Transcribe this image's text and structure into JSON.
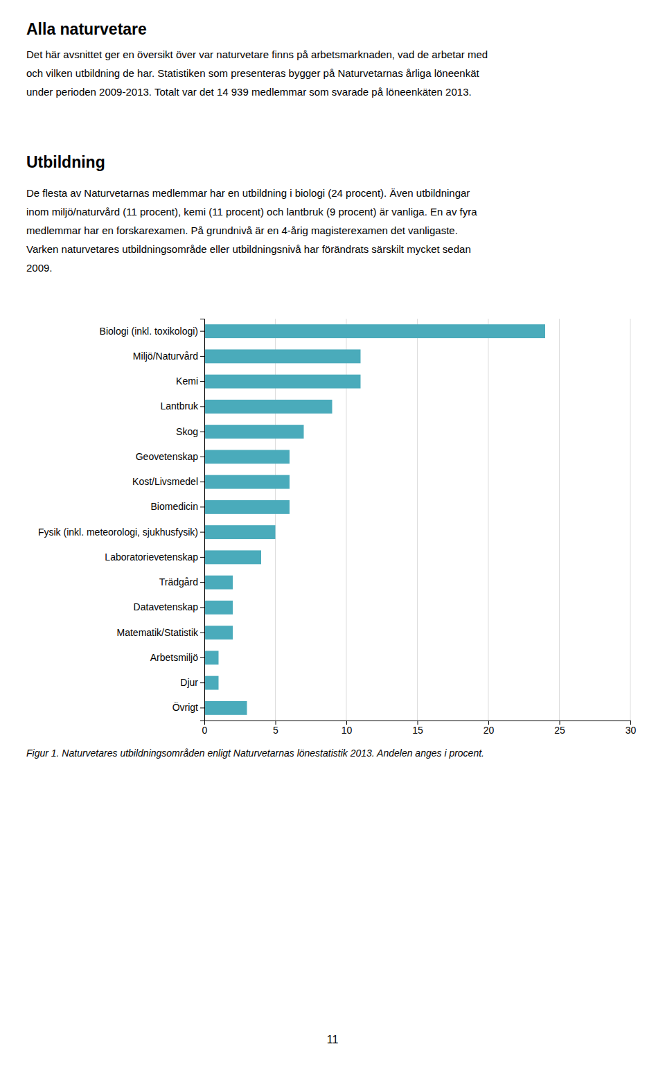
{
  "title": "Alla naturvetare",
  "body_text": [
    "Det här avsnittet ger en översikt över var naturvetare finns på arbetsmarknaden, vad de arbetar med",
    "och vilken utbildning de har. Statistiken som presenteras bygger på Naturvetarnas årliga löneenkät",
    "under perioden 2009-2013. Totalt var det 14 939 medlemmar som svarade på löneenkäten 2013."
  ],
  "section_title": "Utbildning",
  "section_body": [
    "De flesta av Naturvetarnas medlemmar har en utbildning i biologi (24 procent). Även utbildningar",
    "inom miljö/naturvård (11 procent), kemi (11 procent) och lantbruk (9 procent) är vanliga. En av fyra",
    "medlemmar har en forskarexamen.  På grundnivå är en 4-årig magisterexamen det vanligaste.",
    "Varken naturvetares utbildningsområde eller utbildningsnivå har förändrats särskilt mycket sedan",
    "2009."
  ],
  "caption": "Figur 1. Naturvetares utbildningsområden enligt Naturvetarnas lönestatistik 2013. Andelen anges i procent.",
  "page_number": "11",
  "chart_data": {
    "type": "bar",
    "orientation": "horizontal",
    "categories": [
      "Biologi (inkl. toxikologi)",
      "Miljö/Naturvård",
      "Kemi",
      "Lantbruk",
      "Skog",
      "Geovetenskap",
      "Kost/Livsmedel",
      "Biomedicin",
      "Fysik (inkl. meteorologi, sjukhusfysik)",
      "Laboratorievetenskap",
      "Trädgård",
      "Datavetenskap",
      "Matematik/Statistik",
      "Arbetsmiljö",
      "Djur",
      "Övrigt"
    ],
    "values": [
      24,
      11,
      11,
      9,
      7,
      6,
      6,
      6,
      5,
      4,
      2,
      2,
      2,
      1,
      1,
      3
    ],
    "color": "#4AABBB",
    "xlim": [
      0,
      30
    ],
    "xticks": [
      0,
      5,
      10,
      15,
      20,
      25,
      30
    ],
    "grid": true
  }
}
